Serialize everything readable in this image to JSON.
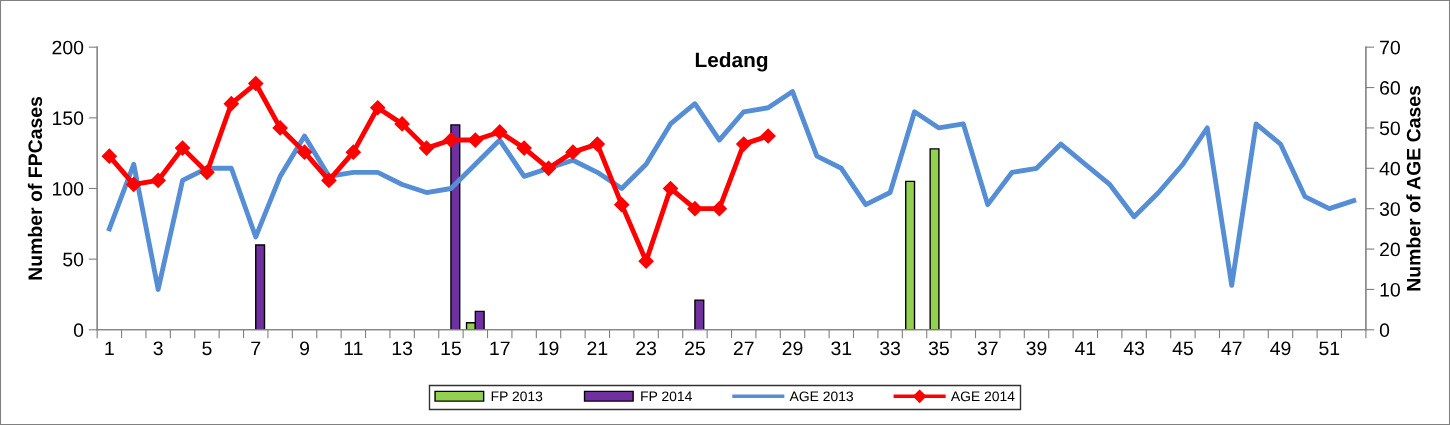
{
  "chart_data": {
    "type": "bar",
    "title": "Ledang",
    "ylabel": "Number of FPCases",
    "y2label": "Number of AGE Cases",
    "categories": [
      "1",
      null,
      "3",
      null,
      "5",
      null,
      "7",
      null,
      "9",
      null,
      "11",
      null,
      "13",
      null,
      "15",
      null,
      "17",
      null,
      "19",
      null,
      "21",
      null,
      "23",
      null,
      "25",
      null,
      "27",
      null,
      "29",
      null,
      "31",
      null,
      "33",
      null,
      "35",
      null,
      "37",
      null,
      "39",
      null,
      "41",
      null,
      "43",
      null,
      "45",
      null,
      "47",
      null,
      "49",
      null,
      "51",
      null
    ],
    "ylim": [
      0,
      200
    ],
    "yticks": [
      0,
      50,
      100,
      150,
      200
    ],
    "y2lim": [
      0,
      70
    ],
    "y2ticks": [
      0,
      10,
      20,
      30,
      40,
      50,
      60,
      70
    ],
    "grid": false,
    "legend": "bottom",
    "series": [
      {
        "name": "FP 2013",
        "color": "#92d050",
        "values": [
          null,
          null,
          null,
          null,
          null,
          null,
          null,
          null,
          null,
          null,
          null,
          null,
          null,
          null,
          null,
          5,
          null,
          null,
          null,
          null,
          null,
          null,
          null,
          null,
          null,
          null,
          null,
          null,
          null,
          null,
          null,
          null,
          null,
          105,
          128,
          null,
          null,
          null,
          null,
          null,
          null,
          null,
          null,
          null,
          null,
          null,
          null,
          null,
          null,
          null,
          null,
          null
        ]
      },
      {
        "name": "FP 2014",
        "color": "#7030a0",
        "values": [
          null,
          null,
          null,
          null,
          null,
          null,
          60,
          null,
          null,
          null,
          null,
          null,
          null,
          null,
          145,
          13,
          null,
          null,
          null,
          null,
          null,
          null,
          null,
          null,
          21,
          null,
          null,
          null,
          null,
          null,
          null,
          null,
          null,
          null,
          null,
          null,
          null,
          null,
          null,
          null,
          null,
          null,
          null,
          null,
          null,
          null,
          null,
          null,
          null,
          null,
          null,
          null
        ]
      },
      {
        "name": "AGE 2013",
        "type": "line",
        "axis": "y2",
        "color": "#558ed5",
        "marker": "none",
        "values": [
          25,
          41,
          10,
          37,
          40,
          40,
          23,
          38,
          48,
          38,
          39,
          39,
          36,
          34,
          35,
          41,
          47,
          38,
          40,
          42,
          39,
          35,
          41,
          51,
          56,
          47,
          54,
          55,
          59,
          43,
          40,
          31,
          34,
          54,
          50,
          51,
          31,
          39,
          40,
          46,
          41,
          36,
          28,
          34,
          41,
          50,
          11,
          51,
          46,
          33,
          30,
          32
        ]
      },
      {
        "name": "AGE 2014",
        "type": "line",
        "axis": "y2",
        "color": "#ff0000",
        "marker": "diamond",
        "values": [
          43,
          36,
          37,
          45,
          39,
          56,
          61,
          50,
          44,
          37,
          44,
          55,
          51,
          45,
          47,
          47,
          49,
          45,
          40,
          44,
          46,
          31,
          17,
          35,
          30,
          30,
          46,
          48,
          null,
          null,
          null,
          null,
          null,
          null,
          null,
          null,
          null,
          null,
          null,
          null,
          null,
          null,
          null,
          null,
          null,
          null,
          null,
          null,
          null,
          null,
          null,
          null
        ]
      }
    ]
  }
}
